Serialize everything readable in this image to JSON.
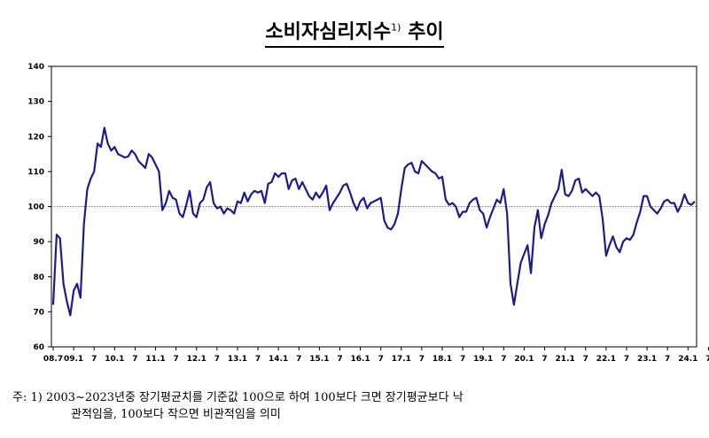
{
  "chart_data": {
    "type": "line",
    "title": "소비자심리지수",
    "title_note_marker": "1)",
    "title_suffix": "추이",
    "ylim": [
      60,
      140
    ],
    "y_ticks": [
      "60",
      "70",
      "80",
      "90",
      "100",
      "110",
      "120",
      "130",
      "140"
    ],
    "x_tick_labels": [
      "08.7",
      "09.1",
      "7",
      "10.1",
      "7",
      "11.1",
      "7",
      "12.1",
      "7",
      "13.1",
      "7",
      "14.1",
      "7",
      "15.1",
      "7",
      "16.1",
      "7",
      "17.1",
      "7",
      "18.1",
      "7",
      "19.1",
      "7",
      "20.1",
      "7",
      "21.1",
      "7",
      "22.1",
      "7",
      "23.1",
      "7",
      "24.1",
      "7"
    ],
    "reference_line": 100,
    "grid": false,
    "series": [
      {
        "color": "#1c1c8c",
        "start": "2008-07",
        "frequency": "monthly",
        "values": [
          72,
          92,
          91,
          78,
          73,
          69,
          76,
          78,
          74,
          95,
          105,
          108,
          110,
          118,
          117,
          122.5,
          118,
          116,
          117,
          115,
          114.5,
          114,
          114.3,
          116,
          115,
          113,
          112,
          111,
          115,
          114,
          112,
          110,
          99,
          101,
          104.5,
          102.5,
          102,
          98,
          97,
          100.5,
          104.5,
          98,
          97,
          101,
          102,
          105.5,
          107,
          101,
          99.5,
          100,
          98,
          99.5,
          99,
          98,
          101.5,
          101,
          104,
          101.5,
          103.5,
          104.5,
          104,
          104.5,
          101,
          106.5,
          107,
          109.5,
          108.5,
          109.5,
          109.5,
          105,
          107.5,
          108,
          105,
          107,
          105,
          103,
          102,
          104,
          102.5,
          104,
          106,
          99,
          101,
          102.5,
          104,
          106,
          106.5,
          104,
          101,
          99,
          101.5,
          102.5,
          99.5,
          101,
          101.5,
          102,
          102.5,
          96,
          94,
          93.5,
          95,
          98,
          105,
          111,
          112,
          112.5,
          110,
          109.5,
          113,
          112,
          111,
          110,
          109.5,
          108,
          108.5,
          102,
          100.5,
          101,
          100,
          97,
          98.5,
          98.5,
          101,
          102,
          102.5,
          99,
          98,
          94,
          97,
          99.5,
          102,
          101,
          105,
          98,
          78,
          72,
          78,
          84,
          86.5,
          89,
          81,
          94,
          99,
          91,
          95,
          97.5,
          101,
          103,
          105,
          110.5,
          103.5,
          103,
          104.5,
          107.5,
          108,
          104,
          105,
          104,
          103,
          104,
          103,
          96.5,
          86,
          89,
          91.5,
          88.5,
          87,
          90,
          91,
          90.5,
          92,
          95.5,
          98.5,
          103,
          103,
          100,
          99,
          98,
          99.5,
          101.5,
          102,
          101,
          101,
          98.5,
          100.5,
          103.5,
          101,
          100.5,
          101.5
        ]
      }
    ]
  },
  "footnote": {
    "line1": "주: 1) 2003~2023년중 장기평균치를 기준값 100으로 하여 100보다 크면 장기평균보다 낙",
    "line2": "관적임을, 100보다 작으면 비관적임을 의미"
  }
}
